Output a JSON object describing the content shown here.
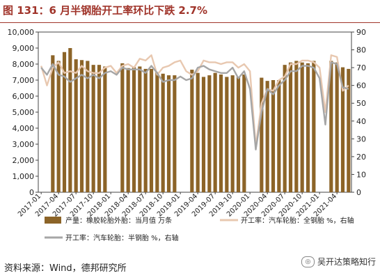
{
  "title": "图 131：6 月半钢胎开工率环比下跌 2.7%",
  "source": "资料来源：Wind，德邦研究所",
  "watermark": "吴开达策略知行",
  "watermark_icon": "wechat-icon",
  "colors": {
    "bar": "#8c6428",
    "allsteel": "#e8c8b0",
    "semisteel": "#a6a6a6",
    "title": "#a0342a"
  },
  "chart_data": {
    "type": "bar",
    "ylim_left": [
      0,
      10000
    ],
    "ylim_right": [
      0,
      90
    ],
    "left_ticks": [
      "0",
      "1,000",
      "2,000",
      "3,000",
      "4,000",
      "5,000",
      "6,000",
      "7,000",
      "8,000",
      "9,000",
      "10,000"
    ],
    "right_ticks": [
      "0",
      "10",
      "20",
      "30",
      "40",
      "50",
      "60",
      "70",
      "80",
      "90"
    ],
    "x_tick_labels": [
      "2017-01",
      "2017-04",
      "2017-07",
      "2017-10",
      "2018-01",
      "2018-04",
      "2018-07",
      "2018-10",
      "2019-01",
      "2019-04",
      "2019-07",
      "2019-10",
      "2020-01",
      "2020-04",
      "2020-07",
      "2020-10",
      "2021-01",
      "2021-04"
    ],
    "x_tick_every": 3,
    "categories": [
      "2017-01",
      "2017-02",
      "2017-03",
      "2017-04",
      "2017-05",
      "2017-06",
      "2017-07",
      "2017-08",
      "2017-09",
      "2017-10",
      "2017-11",
      "2017-12",
      "2018-01",
      "2018-02",
      "2018-03",
      "2018-04",
      "2018-05",
      "2018-06",
      "2018-07",
      "2018-08",
      "2018-09",
      "2018-10",
      "2018-11",
      "2018-12",
      "2019-01",
      "2019-02",
      "2019-03",
      "2019-04",
      "2019-05",
      "2019-06",
      "2019-07",
      "2019-08",
      "2019-09",
      "2019-10",
      "2019-11",
      "2019-12",
      "2020-01",
      "2020-02",
      "2020-03",
      "2020-04",
      "2020-05",
      "2020-06",
      "2020-07",
      "2020-08",
      "2020-09",
      "2020-10",
      "2020-11",
      "2020-12",
      "2021-01",
      "2021-02",
      "2021-03",
      "2021-04",
      "2021-05",
      "2021-06"
    ],
    "series": [
      {
        "name": "产量：橡胶轮胎外胎：当月值  万条",
        "type": "bar",
        "axis": "left",
        "values": [
          null,
          null,
          8550,
          8200,
          8750,
          9000,
          8300,
          8250,
          8200,
          7950,
          7950,
          7850,
          null,
          null,
          8050,
          7750,
          7800,
          7850,
          7700,
          7700,
          7500,
          7400,
          7300,
          7300,
          null,
          null,
          7650,
          7450,
          7200,
          7300,
          7450,
          7350,
          7200,
          7300,
          7200,
          7350,
          null,
          null,
          7150,
          6950,
          7000,
          7000,
          7950,
          8100,
          8200,
          8100,
          8050,
          8200,
          null,
          null,
          8200,
          8100,
          7800,
          7700
        ]
      },
      {
        "name": "开工率：汽车轮胎：全钢胎  %，右轴",
        "type": "line",
        "axis": "right",
        "values": [
          71,
          60,
          70,
          73,
          67,
          68,
          67,
          71,
          68,
          67,
          67,
          70,
          71,
          67,
          71,
          72,
          70,
          75,
          74,
          77,
          66,
          70,
          71,
          73,
          74,
          68,
          66,
          68,
          74,
          73,
          73,
          72,
          73,
          73,
          70,
          72,
          68,
          26,
          50,
          58,
          57,
          63,
          65,
          72,
          72,
          74,
          74,
          73,
          70,
          45,
          77,
          76,
          57,
          60
        ]
      },
      {
        "name": "开工率：汽车轮胎：半钢胎  %，右轴",
        "type": "line",
        "axis": "right",
        "values": [
          70,
          66,
          72,
          66,
          65,
          62,
          64,
          66,
          64,
          66,
          64,
          67,
          68,
          66,
          70,
          69,
          69,
          69,
          67,
          71,
          67,
          62,
          63,
          63,
          65,
          63,
          64,
          70,
          71,
          69,
          68,
          67,
          67,
          70,
          64,
          68,
          58,
          24,
          45,
          58,
          55,
          60,
          63,
          68,
          68,
          71,
          71,
          70,
          64,
          38,
          73,
          72,
          59,
          58
        ]
      }
    ],
    "grid": false,
    "legend_position": "bottom"
  }
}
